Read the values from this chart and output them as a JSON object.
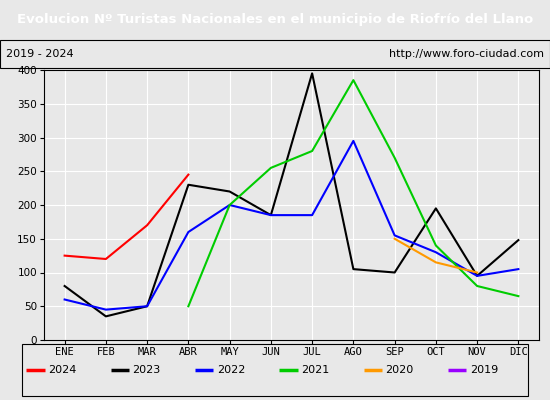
{
  "title": "Evolucion Nº Turistas Nacionales en el municipio de Riofrío del Llano",
  "subtitle_left": "2019 - 2024",
  "subtitle_right": "http://www.foro-ciudad.com",
  "title_bg": "#4472c4",
  "title_color": "white",
  "months": [
    "ENE",
    "FEB",
    "MAR",
    "ABR",
    "MAY",
    "JUN",
    "JUL",
    "AGO",
    "SEP",
    "OCT",
    "NOV",
    "DIC"
  ],
  "series": {
    "2024": {
      "color": "#ff0000",
      "data": [
        125,
        120,
        170,
        245,
        null,
        null,
        null,
        null,
        null,
        null,
        null,
        null
      ]
    },
    "2023": {
      "color": "#000000",
      "data": [
        80,
        35,
        50,
        230,
        220,
        185,
        395,
        105,
        100,
        195,
        95,
        148
      ]
    },
    "2022": {
      "color": "#0000ff",
      "data": [
        60,
        45,
        50,
        160,
        200,
        185,
        185,
        295,
        155,
        130,
        95,
        105
      ]
    },
    "2021": {
      "color": "#00cc00",
      "data": [
        null,
        null,
        null,
        50,
        200,
        255,
        280,
        385,
        270,
        140,
        80,
        65
      ]
    },
    "2020": {
      "color": "#ff9900",
      "data": [
        null,
        null,
        null,
        null,
        null,
        null,
        null,
        null,
        150,
        115,
        100,
        null
      ]
    },
    "2019": {
      "color": "#9900ff",
      "data": [
        null,
        null,
        null,
        null,
        null,
        null,
        null,
        null,
        null,
        null,
        null,
        null
      ]
    }
  },
  "ylim": [
    0,
    400
  ],
  "yticks": [
    0,
    50,
    100,
    150,
    200,
    250,
    300,
    350,
    400
  ],
  "background_color": "#e8e8e8",
  "plot_bg": "#e8e8e8",
  "grid_color": "white",
  "legend_items": [
    {
      "label": "2024",
      "color": "#ff0000"
    },
    {
      "label": "2023",
      "color": "#000000"
    },
    {
      "label": "2022",
      "color": "#0000ff"
    },
    {
      "label": "2021",
      "color": "#00cc00"
    },
    {
      "label": "2020",
      "color": "#ff9900"
    },
    {
      "label": "2019",
      "color": "#9900ff"
    }
  ]
}
